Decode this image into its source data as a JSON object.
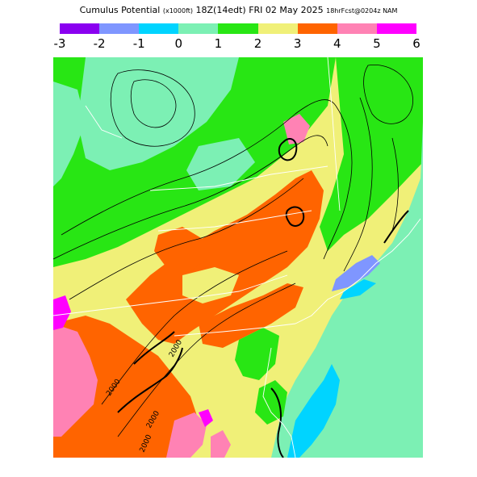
{
  "header": {
    "title_main": "Cumulus Potential",
    "title_units": "(x1000ft)",
    "title_valid": "18Z(14edt) FRI 02 May 2025",
    "title_fcst": "18hrFcst@0204z NAM"
  },
  "legend": {
    "colors": [
      "#8a00f0",
      "#7f96ff",
      "#00d4ff",
      "#7cf0b4",
      "#28e614",
      "#f0f078",
      "#ff6400",
      "#ff82b4",
      "#ff00ff"
    ],
    "ticks": [
      "-3",
      "-2",
      "-1",
      "0",
      "1",
      "2",
      "3",
      "4",
      "5",
      "6"
    ]
  },
  "map": {
    "contour_labels": [
      "2000",
      "2000",
      "2000",
      "2000"
    ]
  }
}
